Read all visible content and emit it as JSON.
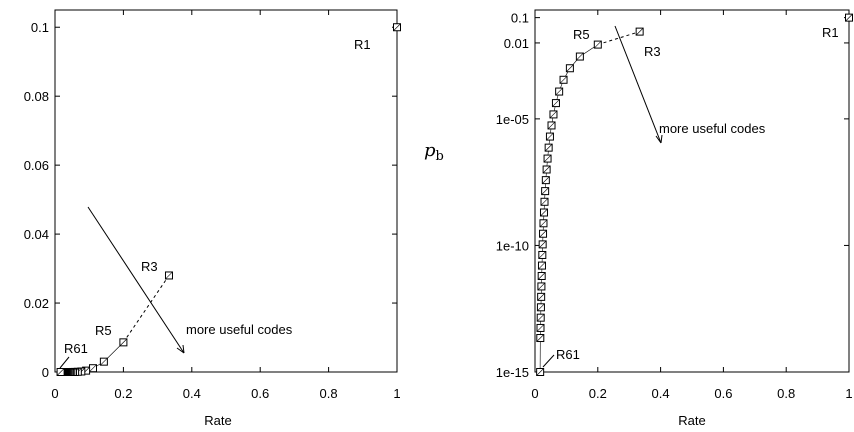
{
  "chart_data": [
    {
      "type": "scatter",
      "xlabel": "Rate",
      "ylabel": "",
      "xlim": [
        0,
        1
      ],
      "ylim": [
        0,
        0.105
      ],
      "yscale": "linear",
      "grid": false,
      "xticks": [
        "0",
        "0.2",
        "0.4",
        "0.6",
        "0.8",
        "1"
      ],
      "yticks": [
        "0",
        "0.02",
        "0.04",
        "0.06",
        "0.08",
        "0.1"
      ],
      "series": [
        {
          "x": [
            1,
            0.3333,
            0.2,
            0.1429,
            0.1111,
            0.0909,
            0.0769,
            0.0667,
            0.0588,
            0.0526,
            0.0476,
            0.0435,
            0.04,
            0.037,
            0.0345,
            0.0323,
            0.0303,
            0.0286,
            0.027,
            0.0256,
            0.0244,
            0.0233,
            0.0222,
            0.0213,
            0.0204,
            0.0196,
            0.0189,
            0.0182,
            0.0175,
            0.0169,
            0.0164
          ],
          "y": [
            0.1,
            0.028,
            0.0086,
            0.003,
            0.0011,
            0.0004,
            0.00015,
            6e-05,
            2e-05,
            1e-05,
            0,
            0,
            0,
            0,
            0,
            0,
            0,
            0,
            0,
            0,
            0,
            0,
            0,
            0,
            0,
            0,
            0,
            0,
            0,
            0,
            0
          ]
        }
      ],
      "annotations": [
        "R1",
        "R3",
        "R5",
        "R61",
        "more useful codes"
      ]
    },
    {
      "type": "scatter",
      "xlabel": "Rate",
      "ylabel": "p_b",
      "ylabel_main": "p",
      "ylabel_sub": "b",
      "xlim": [
        0,
        1
      ],
      "ylim": [
        1e-15,
        0.2
      ],
      "yscale": "log",
      "grid": false,
      "xticks": [
        "0",
        "0.2",
        "0.4",
        "0.6",
        "0.8",
        "1"
      ],
      "yticks": [
        "1e-15",
        "1e-10",
        "1e-05",
        "0.01",
        "0.1"
      ],
      "series": [
        {
          "x": [
            1,
            0.3333,
            0.2,
            0.1429,
            0.1111,
            0.0909,
            0.0769,
            0.0667,
            0.0588,
            0.0526,
            0.0476,
            0.0435,
            0.04,
            0.037,
            0.0345,
            0.0323,
            0.0303,
            0.0286,
            0.027,
            0.0256,
            0.0244,
            0.0233,
            0.0222,
            0.0213,
            0.0204,
            0.0196,
            0.0189,
            0.0182,
            0.0175,
            0.0169,
            0.0164
          ],
          "y": [
            0.1,
            0.028,
            0.0086,
            0.0029,
            0.001,
            0.00035,
            0.00012,
            4.2e-05,
            1.5e-05,
            5.5e-06,
            2e-06,
            7.3e-07,
            2.7e-07,
            1e-07,
            3.8e-08,
            1.4e-08,
            5.3e-09,
            2e-09,
            7.5e-10,
            2.9e-10,
            1.1e-10,
            4.2e-11,
            1.6e-11,
            6.2e-12,
            2.4e-12,
            9.3e-13,
            3.6e-13,
            1.4e-13,
            5.5e-14,
            2.2e-14,
            1e-15
          ]
        }
      ],
      "annotations": [
        "R1",
        "R3",
        "R5",
        "R61",
        "more useful codes"
      ]
    }
  ]
}
